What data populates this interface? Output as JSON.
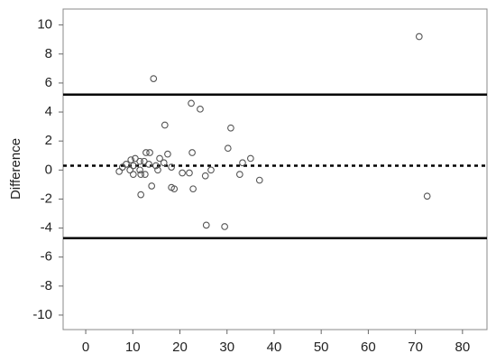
{
  "chart_data": {
    "type": "scatter",
    "ylabel": "Difference",
    "x": [
      70.8,
      72.5,
      14.4,
      22.4,
      24.3,
      16.8,
      30.8,
      30.2,
      22.6,
      12.8,
      13.6,
      17.4,
      35.0,
      33.3,
      15.7,
      16.6,
      10.5,
      9.6,
      11.5,
      12.4,
      8.6,
      10.1,
      13.4,
      14.9,
      18.2,
      7.8,
      7.1,
      9.4,
      11.5,
      15.3,
      20.5,
      22.0,
      26.6,
      10.1,
      11.7,
      12.6,
      25.4,
      32.7,
      36.9,
      14.0,
      18.2,
      18.8,
      22.8,
      11.7,
      25.6,
      29.5
    ],
    "y": [
      9.2,
      -1.8,
      6.3,
      4.6,
      4.2,
      3.1,
      2.9,
      1.5,
      1.2,
      1.2,
      1.2,
      1.1,
      0.8,
      0.5,
      0.8,
      0.5,
      0.8,
      0.7,
      0.6,
      0.6,
      0.4,
      0.3,
      0.4,
      0.3,
      0.2,
      0.2,
      -0.1,
      0.0,
      0.0,
      0.0,
      -0.2,
      -0.2,
      0.0,
      -0.3,
      -0.3,
      -0.3,
      -0.4,
      -0.3,
      -0.7,
      -1.1,
      -1.2,
      -1.3,
      -1.3,
      -1.7,
      -3.8,
      -3.9
    ],
    "reference_lines": [
      {
        "value": 5.2,
        "style": "solid"
      },
      {
        "value": 0.3,
        "style": "dotted"
      },
      {
        "value": -4.7,
        "style": "solid"
      }
    ],
    "xlim": [
      -4.8,
      85.2
    ],
    "xticks": [
      0,
      10,
      20,
      30,
      40,
      50,
      60,
      70,
      80
    ],
    "ylim": [
      -11.0,
      11.1
    ],
    "yticks": [
      -10,
      -8,
      -6,
      -4,
      -2,
      0,
      2,
      4,
      6,
      8,
      10
    ],
    "marker_color": "#555555",
    "line_color": "#000000"
  }
}
